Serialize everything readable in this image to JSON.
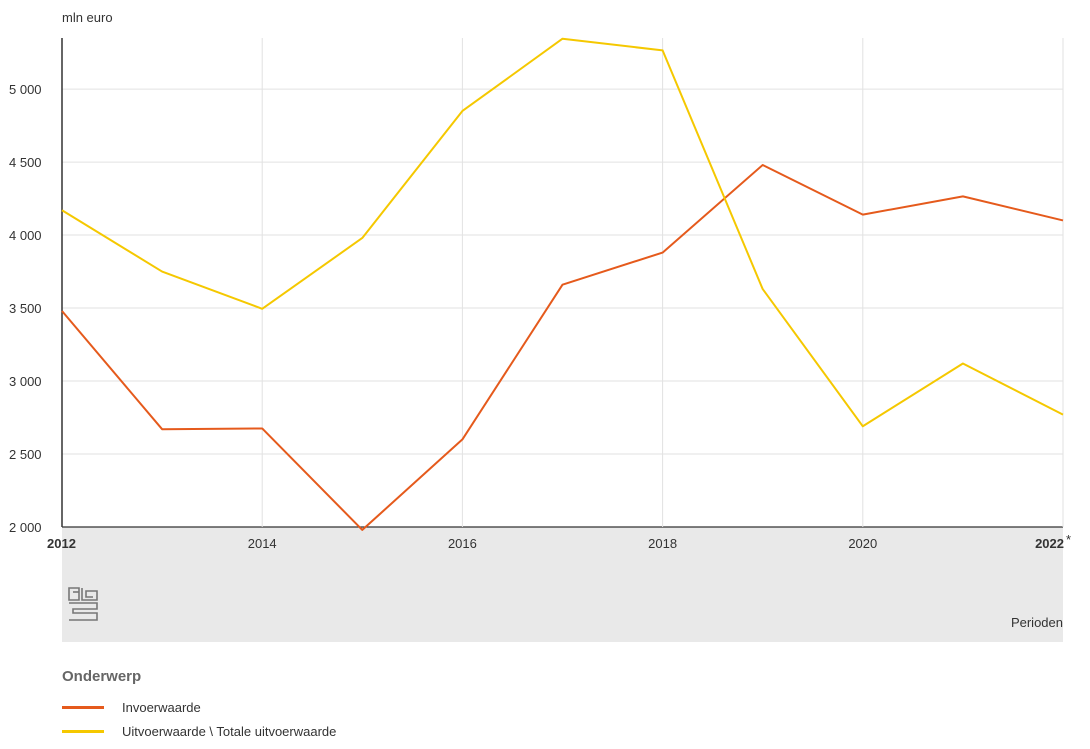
{
  "chart_data": {
    "type": "line",
    "unit_label": "mln euro",
    "xlabel": "Perioden",
    "x": [
      2012,
      2013,
      2014,
      2015,
      2016,
      2017,
      2018,
      2019,
      2020,
      2021,
      2022
    ],
    "x_ticks": [
      {
        "value": 2012,
        "label": "2012",
        "bold": true
      },
      {
        "value": 2014,
        "label": "2014",
        "bold": false
      },
      {
        "value": 2016,
        "label": "2016",
        "bold": false
      },
      {
        "value": 2018,
        "label": "2018",
        "bold": false
      },
      {
        "value": 2020,
        "label": "2020",
        "bold": false
      },
      {
        "value": 2022,
        "label": "2022",
        "bold": true,
        "suffix": "*"
      }
    ],
    "y_ticks": [
      {
        "value": 2000,
        "label": "2 000"
      },
      {
        "value": 2500,
        "label": "2 500"
      },
      {
        "value": 3000,
        "label": "3 000"
      },
      {
        "value": 3500,
        "label": "3 500"
      },
      {
        "value": 4000,
        "label": "4 000"
      },
      {
        "value": 4500,
        "label": "4 500"
      },
      {
        "value": 5000,
        "label": "5 000"
      }
    ],
    "ylim": [
      2000,
      5350
    ],
    "xlim": [
      2012,
      2022
    ],
    "grid": true,
    "legend_title": "Onderwerp",
    "legend_position": "bottom-left",
    "series": [
      {
        "name": "Invoerwaarde",
        "color": "#e55a1c",
        "values": [
          3480,
          2670,
          2675,
          1980,
          2600,
          3660,
          3880,
          4480,
          4140,
          4265,
          4100
        ]
      },
      {
        "name": "Uitvoerwaarde \\ Totale uitvoerwaarde",
        "color": "#f5c800",
        "values": [
          4170,
          3750,
          3495,
          3980,
          4850,
          5345,
          5265,
          3630,
          2690,
          3120,
          2770
        ]
      }
    ],
    "footer_band_color": "#e9e9e9",
    "logo": "cbs-logo"
  }
}
